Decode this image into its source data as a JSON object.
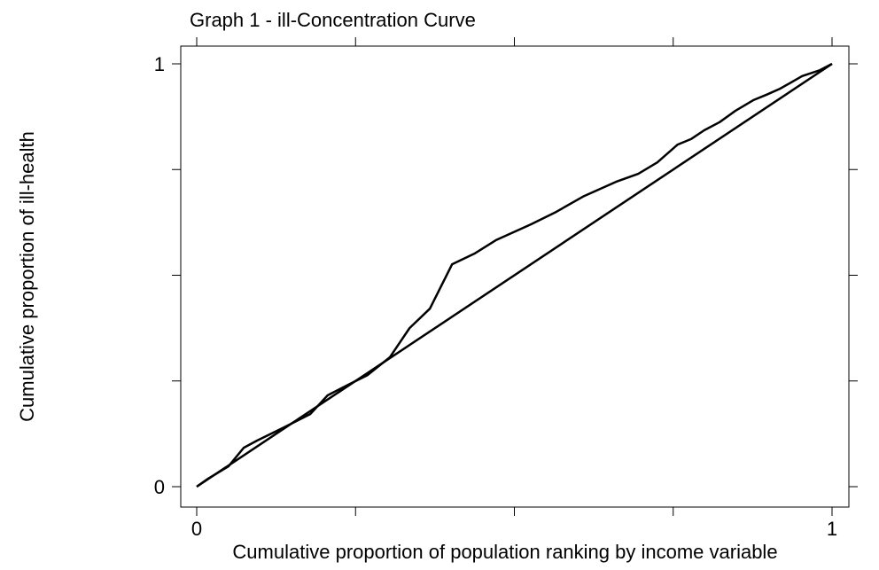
{
  "chart_data": {
    "type": "line",
    "title": "Graph 1 - ill-Concentration Curve",
    "x_label": "Cumulative proportion of population ranking by income variable",
    "y_label": "Cumulative proportion of ill-health",
    "xlim": [
      0,
      1
    ],
    "ylim": [
      0,
      1
    ],
    "xticks": [
      0,
      1
    ],
    "yticks": [
      0,
      1
    ],
    "x_minor_ticks": [
      0.25,
      0.5,
      0.75
    ],
    "y_minor_ticks": [
      0.25,
      0.5,
      0.75
    ],
    "mirror_ticks": true,
    "series": [
      {
        "color": "#000000",
        "x": [
          0,
          0.018,
          0.05,
          0.074,
          0.095,
          0.137,
          0.179,
          0.206,
          0.241,
          0.269,
          0.304,
          0.335,
          0.367,
          0.402,
          0.437,
          0.471,
          0.527,
          0.566,
          0.608,
          0.66,
          0.695,
          0.725,
          0.757,
          0.778,
          0.799,
          0.823,
          0.848,
          0.876,
          0.897,
          0.918,
          0.953,
          0.981,
          1
        ],
        "values": [
          0,
          0.019,
          0.048,
          0.092,
          0.109,
          0.14,
          0.172,
          0.216,
          0.243,
          0.264,
          0.306,
          0.375,
          0.421,
          0.526,
          0.551,
          0.583,
          0.621,
          0.65,
          0.686,
          0.721,
          0.74,
          0.767,
          0.809,
          0.822,
          0.843,
          0.862,
          0.889,
          0.914,
          0.927,
          0.941,
          0.971,
          0.985,
          1
        ]
      },
      {
        "color": "#000000",
        "x": [
          0,
          1
        ],
        "values": [
          0,
          1
        ]
      }
    ]
  }
}
